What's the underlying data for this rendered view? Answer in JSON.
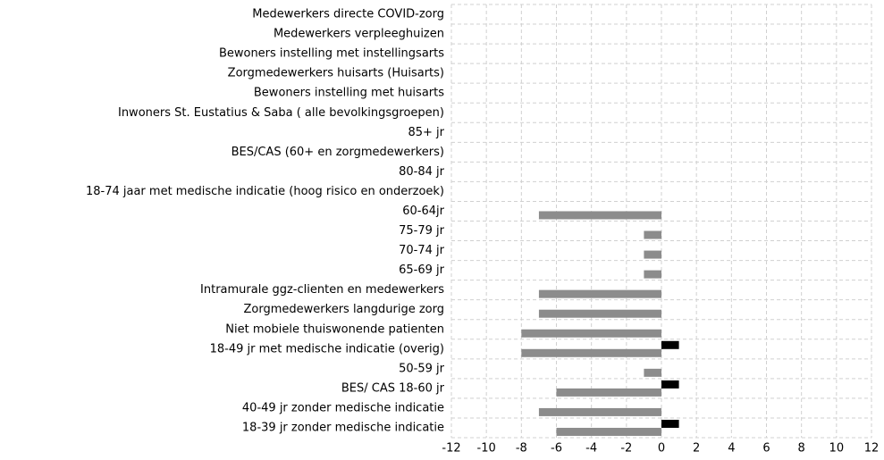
{
  "chart_data": {
    "type": "bar",
    "orientation": "horizontal",
    "categories": [
      "Medewerkers directe COVID-zorg",
      "Medewerkers verpleeghuizen",
      "Bewoners instelling met instellingsarts",
      "Zorgmedewerkers huisarts (Huisarts)",
      "Bewoners instelling met huisarts",
      "Inwoners St. Eustatius & Saba ( alle bevolkingsgroepen)",
      "85+ jr",
      "BES/CAS (60+ en zorgmedewerkers)",
      "80-84 jr",
      "18-74 jaar met medische indicatie (hoog risico en onderzoek)",
      "60-64jr",
      "75-79 jr",
      "70-74 jr",
      "65-69 jr",
      "Intramurale ggz-clienten en medewerkers",
      "Zorgmedewerkers langdurige zorg",
      "Niet mobiele thuiswonende patienten",
      "18-49 jr met medische indicatie (overig)",
      "50-59 jr",
      "BES/ CAS 18-60 jr",
      "40-49 jr zonder medische indicatie",
      "18-39 jr zonder medische indicatie"
    ],
    "series": [
      {
        "color": "#8c8c8c",
        "values": [
          null,
          null,
          null,
          null,
          null,
          null,
          null,
          null,
          null,
          null,
          -7,
          -1,
          -1,
          -1,
          -7,
          -7,
          -8,
          -8,
          -1,
          -6,
          -7,
          -6
        ]
      },
      {
        "color": "#000000",
        "values": [
          null,
          null,
          null,
          null,
          null,
          null,
          null,
          null,
          null,
          null,
          null,
          null,
          null,
          null,
          null,
          null,
          null,
          1,
          null,
          1,
          null,
          1
        ]
      }
    ],
    "xlim": [
      -12,
      12
    ],
    "xticks": [
      -12,
      -10,
      -8,
      -6,
      -4,
      -2,
      0,
      2,
      4,
      6,
      8,
      10,
      12
    ],
    "grid": true
  }
}
